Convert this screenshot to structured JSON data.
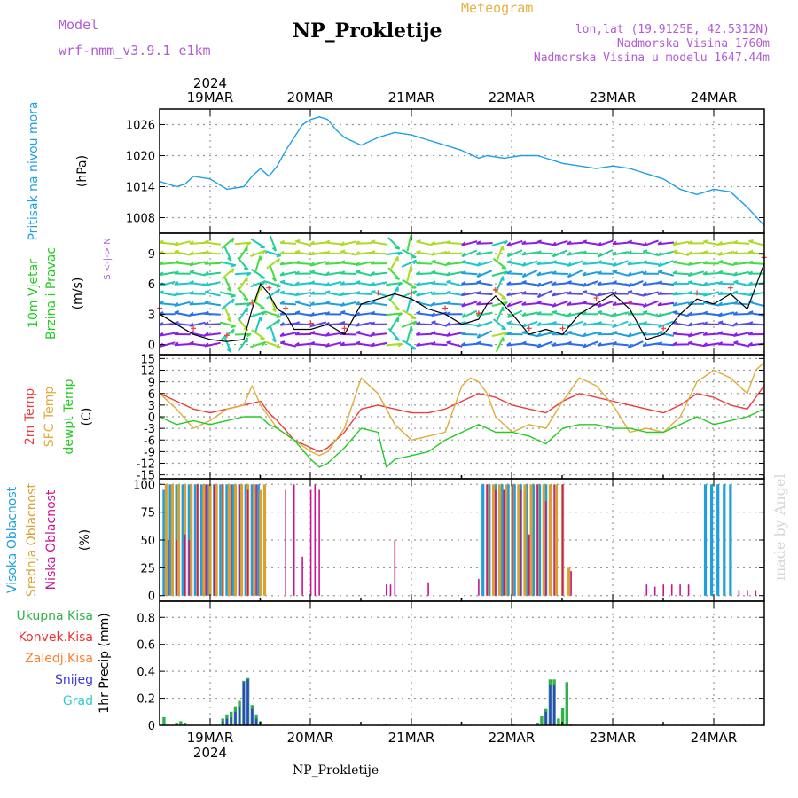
{
  "header": {
    "model_label": "Model",
    "model_name": "wrf-nmm_v3.9.1 e1km",
    "title": "NP_Prokletije",
    "subtitle": "Meteogram",
    "location": "lon,lat (19.9125E, 42.5312N)",
    "elevation": "Nadmorska Visina 1760m",
    "model_elevation": "Nadmorska Visina u modelu 1647.44m",
    "footer": "NP_Prokletije",
    "watermark": "made by Angel"
  },
  "time_axis": {
    "year": "2024",
    "day_labels": [
      "19MAR",
      "20MAR",
      "21MAR",
      "22MAR",
      "23MAR",
      "24MAR"
    ]
  },
  "colors": {
    "pressure": "#1ea0e6",
    "temp2m": "#ee3b3b",
    "sfc_temp": "#e0ac3c",
    "dewpt": "#22cc22",
    "high_cloud": "#1e9fdf",
    "mid_cloud": "#d9a12e",
    "low_cloud": "#c7168f",
    "total_precip": "#2db34a",
    "conv_precip": "#ee3030",
    "frozen_precip": "#ff7f2a",
    "snow": "#3a3ae0",
    "graupel": "#33cccc"
  },
  "chart_data": [
    {
      "type": "line",
      "panel": "pressure",
      "ylabel": "Pritisak na nivou mora",
      "unit": "(hPa)",
      "yticks": [
        1026,
        1020,
        1014,
        1008
      ],
      "ylim": [
        1005,
        1029
      ],
      "xlim_hours": [
        -12,
        132
      ],
      "grid": true,
      "series": [
        {
          "key": "pressure",
          "x": [
            -12,
            -8,
            -6,
            -4,
            0,
            4,
            8,
            10,
            12,
            14,
            16,
            18,
            20,
            22,
            24,
            26,
            28,
            30,
            32,
            36,
            40,
            44,
            48,
            52,
            56,
            60,
            64,
            66,
            70,
            74,
            78,
            82,
            84,
            88,
            92,
            96,
            100,
            102,
            104,
            108,
            112,
            116,
            120,
            124,
            128,
            132
          ],
          "values": [
            1015.0,
            1014.0,
            1014.5,
            1016.0,
            1015.5,
            1013.5,
            1014.0,
            1016.0,
            1017.5,
            1016.0,
            1018.0,
            1021.0,
            1023.5,
            1026.0,
            1027.0,
            1027.5,
            1027.0,
            1025.0,
            1023.5,
            1022.0,
            1023.5,
            1024.5,
            1024.0,
            1023.0,
            1022.0,
            1021.0,
            1019.5,
            1020.0,
            1019.5,
            1020.0,
            1020.0,
            1019.0,
            1018.5,
            1018.0,
            1017.5,
            1018.0,
            1017.5,
            1017.0,
            1016.5,
            1015.5,
            1013.5,
            1012.5,
            1013.5,
            1013.0,
            1010.0,
            1006.5
          ]
        }
      ]
    },
    {
      "type": "line",
      "panel": "wind",
      "ylabel_line1": "10m Vjetar",
      "ylabel_line2": "Brzina i Pravac",
      "unit": "(m/s)",
      "compass": "S <-|-> N",
      "yticks": [
        9,
        6,
        3,
        0
      ],
      "ylim": [
        -1,
        11
      ],
      "grid": true,
      "series": [
        {
          "key": "wind_speed",
          "x": [
            -12,
            -8,
            -4,
            0,
            4,
            8,
            10,
            12,
            14,
            16,
            18,
            20,
            24,
            28,
            32,
            36,
            40,
            44,
            48,
            52,
            56,
            60,
            64,
            66,
            68,
            72,
            76,
            80,
            84,
            88,
            92,
            96,
            100,
            104,
            108,
            112,
            116,
            120,
            124,
            128,
            132
          ],
          "values": [
            3.0,
            2.0,
            1.0,
            0.5,
            0.3,
            0.5,
            3.5,
            6.0,
            5.0,
            3.5,
            3.0,
            1.5,
            1.5,
            2.0,
            1.0,
            4.0,
            4.5,
            5.0,
            4.5,
            3.5,
            3.0,
            2.0,
            2.5,
            4.0,
            4.8,
            3.0,
            1.0,
            1.5,
            1.0,
            3.0,
            4.0,
            5.0,
            3.5,
            0.5,
            1.0,
            3.0,
            4.5,
            4.0,
            5.0,
            3.5,
            8.0
          ]
        }
      ],
      "arrows": {
        "rows_m_s": [
          0,
          1,
          2,
          3,
          4,
          5,
          6,
          7,
          8,
          9,
          10
        ],
        "columns": 40
      }
    },
    {
      "type": "line",
      "panel": "temperature",
      "ylabels": [
        "2m Temp",
        "SFC Temp",
        "dewpt Temp"
      ],
      "unit": "(C)",
      "yticks": [
        15,
        12,
        9,
        6,
        3,
        0,
        -3,
        -6,
        -9,
        -12,
        -15
      ],
      "ylim": [
        -16,
        16
      ],
      "grid": true,
      "series": [
        {
          "key": "temp2m",
          "x": [
            -12,
            -8,
            -4,
            0,
            4,
            8,
            12,
            14,
            16,
            20,
            24,
            26,
            28,
            32,
            36,
            40,
            44,
            48,
            52,
            56,
            60,
            64,
            68,
            72,
            76,
            80,
            84,
            88,
            92,
            96,
            100,
            104,
            108,
            112,
            116,
            120,
            124,
            128,
            132
          ],
          "values": [
            6,
            4,
            2,
            1,
            2,
            3,
            4,
            1,
            -1,
            -6,
            -8,
            -9,
            -8,
            -4,
            2,
            3,
            2,
            1,
            1,
            2,
            4,
            6,
            5,
            3,
            2,
            1,
            4,
            6,
            5,
            4,
            3,
            2,
            1,
            3,
            6,
            5,
            3,
            2,
            8
          ]
        },
        {
          "key": "sfc_temp",
          "x": [
            -12,
            -8,
            -4,
            0,
            4,
            8,
            10,
            12,
            14,
            16,
            20,
            24,
            26,
            28,
            32,
            36,
            40,
            44,
            48,
            52,
            56,
            60,
            62,
            64,
            66,
            68,
            72,
            76,
            80,
            84,
            88,
            92,
            96,
            100,
            104,
            108,
            112,
            116,
            120,
            124,
            128,
            130,
            132
          ],
          "values": [
            6,
            2,
            -3,
            -1,
            2,
            3,
            8,
            3,
            0,
            -3,
            -6,
            -9,
            -10,
            -9,
            -3,
            10,
            6,
            -2,
            -6,
            -5,
            -4,
            8,
            10,
            9,
            6,
            0,
            -4,
            -2,
            -3,
            4,
            10,
            8,
            3,
            -4,
            -3,
            -4,
            0,
            9,
            12,
            10,
            6,
            12,
            14
          ]
        },
        {
          "key": "dewpt",
          "x": [
            -12,
            -8,
            -4,
            0,
            4,
            8,
            12,
            14,
            16,
            20,
            24,
            26,
            28,
            32,
            36,
            40,
            42,
            44,
            48,
            52,
            56,
            60,
            64,
            68,
            72,
            76,
            80,
            84,
            88,
            92,
            96,
            100,
            104,
            108,
            112,
            116,
            120,
            124,
            128,
            132
          ],
          "values": [
            0,
            -2,
            -1,
            -2,
            -1,
            0,
            0,
            -2,
            -3,
            -6,
            -11,
            -13,
            -12,
            -8,
            -3,
            -4,
            -13,
            -11,
            -10,
            -9,
            -6,
            -4,
            -2,
            -4,
            -4,
            -5,
            -7,
            -3,
            -2,
            -2,
            -3,
            -3,
            -4,
            -4,
            -2,
            0,
            -2,
            -1,
            0,
            2
          ]
        }
      ]
    },
    {
      "type": "bar",
      "panel": "clouds",
      "ylabels": [
        "Visoka Oblacnost",
        "Srednja Oblacnost",
        "Niska Oblacnost"
      ],
      "unit": "(%)",
      "yticks": [
        100,
        75,
        50,
        25,
        0
      ],
      "ylim": [
        -5,
        105
      ],
      "grid": true,
      "series": [
        {
          "key": "high_cloud",
          "x": [
            -11,
            -9.5,
            -8,
            -6.5,
            -5,
            -3.5,
            -2,
            -0.5,
            1,
            2.5,
            4,
            5.5,
            7,
            8.5,
            10,
            11.5,
            65,
            66.5,
            68,
            69.5,
            71,
            72.5,
            74,
            75.5,
            77,
            78.5,
            80,
            118,
            119.5,
            121,
            122.5,
            124
          ],
          "values": [
            95,
            100,
            100,
            100,
            100,
            100,
            100,
            100,
            100,
            100,
            100,
            100,
            100,
            100,
            100,
            100,
            100,
            100,
            100,
            100,
            100,
            100,
            100,
            100,
            100,
            100,
            100,
            100,
            100,
            100,
            100,
            100
          ]
        },
        {
          "key": "mid_cloud",
          "x": [
            -10.5,
            -9,
            -7.5,
            -6,
            -4.5,
            -3,
            -1.5,
            0,
            1.5,
            3,
            4.5,
            6,
            7.5,
            9,
            10.5,
            12,
            13,
            66,
            67.5,
            69,
            70.5,
            72,
            73.5,
            75,
            76.5,
            78,
            79.5,
            81,
            82.5,
            84,
            85.5
          ],
          "values": [
            100,
            100,
            100,
            100,
            100,
            100,
            100,
            100,
            100,
            100,
            100,
            100,
            100,
            100,
            100,
            95,
            100,
            100,
            100,
            100,
            100,
            100,
            100,
            100,
            100,
            100,
            100,
            100,
            100,
            100,
            25
          ]
        },
        {
          "key": "low_cloud",
          "x": [
            -12,
            -10,
            -8,
            -6,
            -5,
            -3,
            -1,
            1,
            3,
            5,
            7,
            9,
            11,
            18,
            20,
            22,
            24,
            25,
            26,
            42,
            43,
            44,
            52,
            64,
            66,
            68,
            70,
            72,
            74,
            76,
            78,
            80,
            82,
            84,
            86,
            104,
            106,
            108,
            110,
            112,
            114,
            126,
            128,
            130
          ],
          "values": [
            12,
            50,
            50,
            55,
            50,
            100,
            100,
            100,
            100,
            100,
            100,
            95,
            100,
            95,
            100,
            35,
            95,
            100,
            95,
            10,
            10,
            50,
            12,
            15,
            100,
            95,
            95,
            100,
            95,
            55,
            100,
            85,
            100,
            100,
            22,
            10,
            8,
            10,
            10,
            10,
            10,
            5,
            5,
            5
          ]
        }
      ]
    },
    {
      "type": "bar",
      "panel": "precipitation",
      "ylabels": [
        "Ukupna Kisa",
        "Konvek.Kisa",
        "Zaledj.Kisa",
        "Snijeg",
        "Grad"
      ],
      "unit": "1hr Precip (mm)",
      "yticks": [
        0.8,
        0.6,
        0.4,
        0.2,
        0
      ],
      "ylim": [
        0,
        0.92
      ],
      "grid": true,
      "series": [
        {
          "key": "total_precip",
          "x": [
            -11,
            -8,
            -7,
            -6,
            3,
            4,
            5,
            6,
            7,
            8,
            9,
            10,
            11,
            12,
            42,
            72,
            78,
            79,
            80,
            81,
            82,
            83,
            84,
            85,
            86
          ],
          "values": [
            0.06,
            0.02,
            0.03,
            0.02,
            0.05,
            0.08,
            0.1,
            0.14,
            0.18,
            0.33,
            0.35,
            0.15,
            0.08,
            0.03,
            0.01,
            0.01,
            0.02,
            0.07,
            0.12,
            0.34,
            0.34,
            0.05,
            0.13,
            0.32,
            0.01
          ]
        },
        {
          "key": "snow",
          "x": [
            3,
            4,
            5,
            6,
            7,
            8,
            9,
            10,
            11,
            72,
            80,
            81,
            82
          ],
          "values": [
            0.03,
            0.05,
            0.06,
            0.1,
            0.14,
            0.32,
            0.34,
            0.12,
            0.05,
            0.01,
            0.1,
            0.3,
            0.3
          ]
        }
      ]
    }
  ]
}
